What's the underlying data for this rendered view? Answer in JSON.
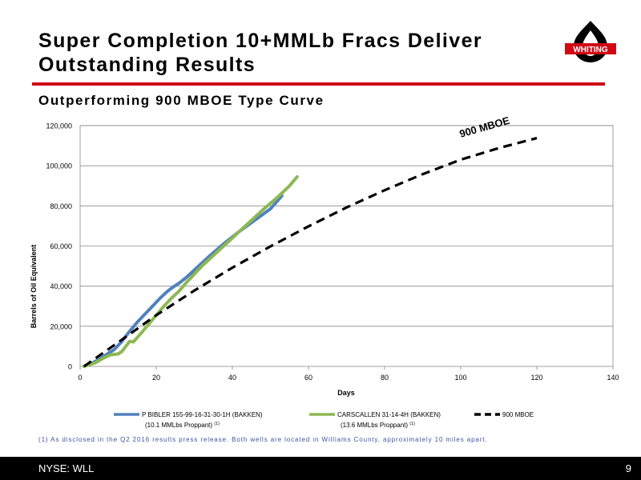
{
  "header": {
    "title_line1": "Super Completion 10+MMLb Fracs Deliver",
    "title_line2": "Outstanding Results",
    "subtitle": "Outperforming 900 MBOE Type Curve",
    "logo_text": "WHITING"
  },
  "colors": {
    "accent_red": "#d00a14",
    "series_blue": "#4f81bd",
    "series_green": "#8db853",
    "series_black": "#000000",
    "footnote_blue": "#3e55a0"
  },
  "chart_data": {
    "type": "line",
    "xlabel": "Days",
    "ylabel": "Barrels of Oil Equivalent",
    "xlim": [
      0,
      140
    ],
    "ylim": [
      0,
      120000
    ],
    "x_ticks": [
      "0",
      "20",
      "40",
      "60",
      "80",
      "100",
      "120",
      "140"
    ],
    "y_ticks": [
      "0",
      "20,000",
      "40,000",
      "60,000",
      "80,000",
      "100,000",
      "120,000"
    ],
    "grid": "horizontal",
    "legend_position": "bottom",
    "annotation": "900 MBOE",
    "series": [
      {
        "name": "P BIBLER 155-99-16-31-30-1H (BAKKEN)",
        "sub": "(10.1 MMLbs Proppant)",
        "sup": "(1)",
        "style": "solid",
        "points": [
          [
            1,
            0
          ],
          [
            3,
            1500
          ],
          [
            5,
            3500
          ],
          [
            7,
            6000
          ],
          [
            9,
            8500
          ],
          [
            11,
            12500
          ],
          [
            13,
            17500
          ],
          [
            15,
            22000
          ],
          [
            17,
            26000
          ],
          [
            19,
            30000
          ],
          [
            21,
            34000
          ],
          [
            23,
            37500
          ],
          [
            24,
            39000
          ],
          [
            26,
            41500
          ],
          [
            28,
            44500
          ],
          [
            30,
            48000
          ],
          [
            34,
            55000
          ],
          [
            38,
            61500
          ],
          [
            42,
            67500
          ],
          [
            46,
            73000
          ],
          [
            50,
            78500
          ],
          [
            53,
            85000
          ]
        ]
      },
      {
        "name": "CARSCALLEN 31-14-4H (BAKKEN)",
        "sub": "(13.6 MMLbs Proppant)",
        "sup": "(1)",
        "style": "solid",
        "points": [
          [
            1,
            0
          ],
          [
            4,
            1800
          ],
          [
            6,
            4000
          ],
          [
            8,
            5800
          ],
          [
            10,
            6200
          ],
          [
            11,
            7500
          ],
          [
            12,
            10000
          ],
          [
            13,
            12500
          ],
          [
            14,
            12200
          ],
          [
            16,
            16500
          ],
          [
            18,
            21000
          ],
          [
            20,
            25500
          ],
          [
            22,
            30000
          ],
          [
            24,
            34000
          ],
          [
            26,
            37500
          ],
          [
            28,
            42000
          ],
          [
            32,
            50000
          ],
          [
            36,
            57000
          ],
          [
            40,
            64000
          ],
          [
            44,
            71000
          ],
          [
            48,
            78000
          ],
          [
            52,
            84500
          ],
          [
            55,
            90000
          ],
          [
            57,
            94500
          ]
        ]
      },
      {
        "name": "900 MBOE",
        "style": "dashed",
        "points": [
          [
            1,
            0
          ],
          [
            10,
            12000
          ],
          [
            20,
            25500
          ],
          [
            30,
            37800
          ],
          [
            40,
            49200
          ],
          [
            50,
            59800
          ],
          [
            60,
            69800
          ],
          [
            70,
            79200
          ],
          [
            80,
            87800
          ],
          [
            90,
            95800
          ],
          [
            100,
            103000
          ],
          [
            110,
            108800
          ],
          [
            120,
            113800
          ]
        ]
      }
    ]
  },
  "footnote": "(1) As disclosed in the Q2 2016 results press release.  Both wells are located in Williams County, approximately 10 miles apart.",
  "footer": {
    "ticker": "NYSE: WLL",
    "page_number": "9"
  }
}
